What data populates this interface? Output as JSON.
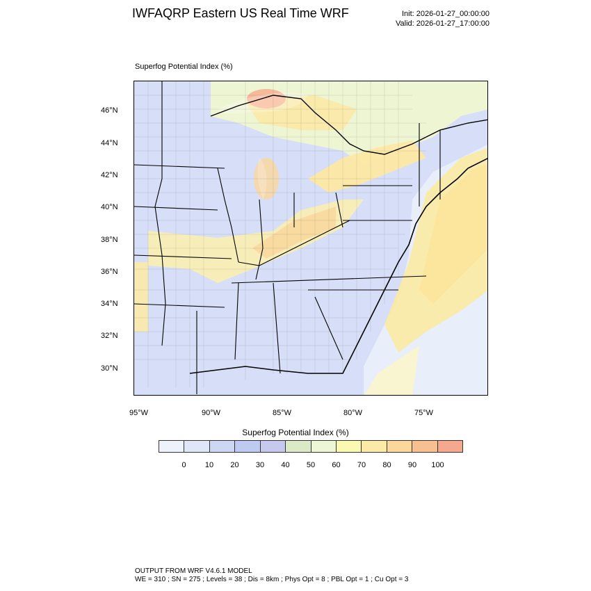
{
  "header": {
    "title": "IWFAQRP Eastern US Real Time WRF",
    "init": "Init: 2026-01-27_00:00:00",
    "valid": "Valid: 2026-01-27_17:00:00"
  },
  "map": {
    "field_label": "Superfog Potential Index   (%)",
    "lat_labels": [
      "46°N",
      "44°N",
      "42°N",
      "40°N",
      "38°N",
      "36°N",
      "34°N",
      "32°N",
      "30°N"
    ],
    "lon_labels": [
      "95°W",
      "90°W",
      "85°W",
      "80°W",
      "75°W"
    ]
  },
  "colorbar": {
    "title": "Superfog Potential Index  (%)",
    "colors": [
      "#eef2fb",
      "#dfe6f8",
      "#ccd8f3",
      "#bfcaf0",
      "#c6c8ee",
      "#dbe9c6",
      "#eef6d6",
      "#fbf8b2",
      "#fde9a6",
      "#fbd89a",
      "#f8c090",
      "#f6a88f"
    ],
    "labels": [
      "0",
      "10",
      "20",
      "30",
      "40",
      "50",
      "60",
      "70",
      "80",
      "90",
      "100"
    ]
  },
  "footer": {
    "line1": "OUTPUT FROM WRF V4.6.1 MODEL",
    "line2": "WE = 310 ; SN = 275 ; Levels = 38 ; Dis = 8km ; Phys Opt = 8 ; PBL Opt = 1 ; Cu Opt = 3"
  }
}
